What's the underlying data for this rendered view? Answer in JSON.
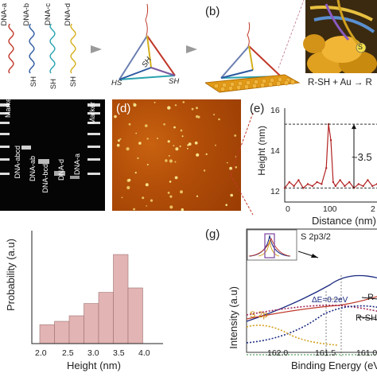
{
  "panels": {
    "b": "(b)",
    "d": "(d)",
    "e": "(e)",
    "g": "(g)"
  },
  "panel_a": {
    "strands": [
      {
        "label": "DNA-a",
        "color": "#c0392b"
      },
      {
        "label": "DNA-b",
        "color": "#2c5aa0"
      },
      {
        "label": "DNA-c",
        "color": "#2aa3b0"
      },
      {
        "label": "DNA-d",
        "color": "#d4b01c"
      }
    ],
    "sh_labels": [
      "SH",
      "SH",
      "SH"
    ],
    "tetra_labels": [
      "SH",
      "HS",
      "SH"
    ],
    "colors": {
      "arrow": "#9a9a9a",
      "gold": "#e39a16"
    }
  },
  "panel_b": {
    "zoom_label": "S",
    "equation": "R-SH + Au → R"
  },
  "gel": {
    "lanes": [
      "Marker",
      "DNA-abcd",
      "DNA-ab",
      "DNA-bcd",
      "DNA-d",
      "DNA-a",
      "Marker"
    ]
  },
  "panel_e": {
    "ylabel": "Height (nm)",
    "xlabel": "Distance (nm)",
    "yticks": [
      "16",
      "14",
      "12"
    ],
    "xticks": [
      "0",
      "100",
      "2"
    ],
    "annotation": "~3.5",
    "color": "#b22222"
  },
  "panel_f": {
    "ylabel": "Probability (a.u)",
    "xlabel": "Height (nm)",
    "xticks": [
      "2.0",
      "2.5",
      "3.0",
      "3.5",
      "4.0"
    ],
    "bar_color": "#e2b4b4"
  },
  "panel_g": {
    "ylabel": "Intensity (a.u)",
    "xlabel": "Binding Energy (eV)",
    "xticks": [
      "162.0",
      "161.5",
      "161.0"
    ],
    "label_s2p32": "S 2p3/2",
    "label_s2p": "S 2p",
    "label_de": "ΔE=0.2eV",
    "label_r": "R",
    "label_rsh": "R-SH"
  },
  "chart_data": [
    {
      "type": "line",
      "title": "",
      "xlabel": "Distance (nm)",
      "ylabel": "Height (nm)",
      "ylim": [
        11.5,
        16.2
      ],
      "xlim": [
        0,
        200
      ],
      "series": [
        {
          "x": [
            0,
            10,
            20,
            30,
            40,
            50,
            60,
            70,
            80,
            90,
            95,
            100,
            105,
            110,
            120,
            130,
            140,
            150,
            160,
            170,
            180,
            190,
            200
          ],
          "values": [
            12.2,
            12.5,
            12.3,
            12.6,
            12.2,
            12.4,
            12.3,
            12.5,
            12.4,
            13.2,
            15.4,
            14.6,
            12.5,
            12.3,
            12.6,
            12.3,
            12.5,
            12.2,
            12.4,
            12.3,
            12.6,
            12.3,
            12.4
          ]
        }
      ],
      "annotation": "~3.5"
    },
    {
      "type": "bar",
      "title": "",
      "xlabel": "Height (nm)",
      "ylabel": "Probability (a.u)",
      "categories": [
        "2.0-2.3",
        "2.3-2.6",
        "2.6-2.9",
        "2.9-3.2",
        "3.2-3.5",
        "3.5-3.8",
        "3.8-4.0"
      ],
      "values": [
        0.17,
        0.2,
        0.25,
        0.36,
        0.46,
        0.8,
        0.5
      ]
    }
  ]
}
